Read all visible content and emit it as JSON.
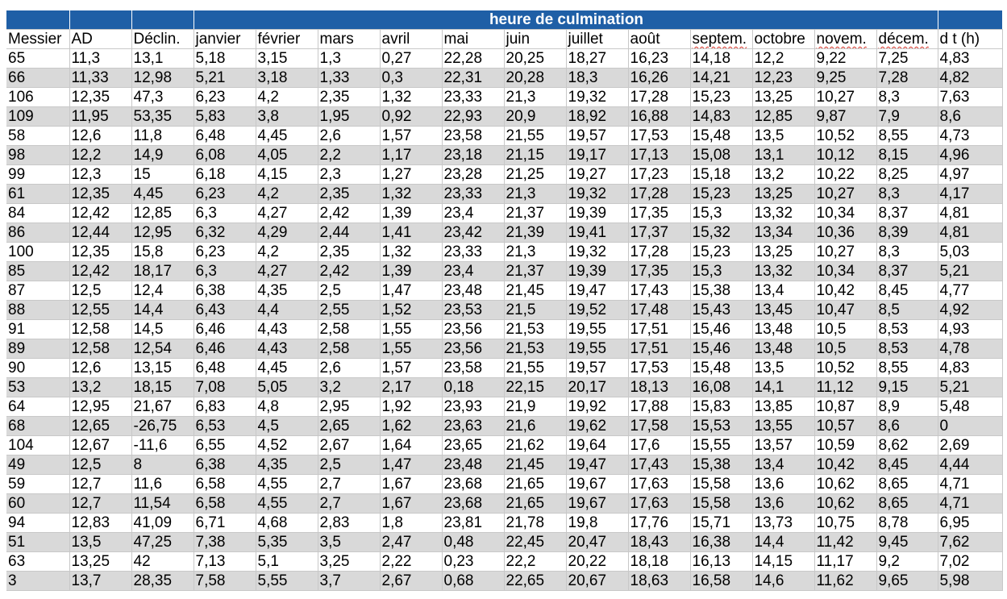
{
  "sheet": {
    "group_header": "heure de culmination",
    "columns": [
      "Messier",
      "AD",
      "Déclin.",
      "janvier",
      "février",
      "mars",
      "avril",
      "mai",
      "juin",
      "juillet",
      "août",
      "septem.",
      "octobre",
      "novem.",
      "décem.",
      "d t (h)"
    ],
    "spellcheck_columns": [
      11,
      13,
      14
    ],
    "rows": [
      [
        "65",
        "11,3",
        "13,1",
        "5,18",
        "3,15",
        "1,3",
        "0,27",
        "22,28",
        "20,25",
        "18,27",
        "16,23",
        "14,18",
        "12,2",
        "9,22",
        "7,25",
        "4,83"
      ],
      [
        "66",
        "11,33",
        "12,98",
        "5,21",
        "3,18",
        "1,33",
        "0,3",
        "22,31",
        "20,28",
        "18,3",
        "16,26",
        "14,21",
        "12,23",
        "9,25",
        "7,28",
        "4,82"
      ],
      [
        "106",
        "12,35",
        "47,3",
        "6,23",
        "4,2",
        "2,35",
        "1,32",
        "23,33",
        "21,3",
        "19,32",
        "17,28",
        "15,23",
        "13,25",
        "10,27",
        "8,3",
        "7,63"
      ],
      [
        "109",
        "11,95",
        "53,35",
        "5,83",
        "3,8",
        "1,95",
        "0,92",
        "22,93",
        "20,9",
        "18,92",
        "16,88",
        "14,83",
        "12,85",
        "9,87",
        "7,9",
        "8,6"
      ],
      [
        "58",
        "12,6",
        "11,8",
        "6,48",
        "4,45",
        "2,6",
        "1,57",
        "23,58",
        "21,55",
        "19,57",
        "17,53",
        "15,48",
        "13,5",
        "10,52",
        "8,55",
        "4,73"
      ],
      [
        "98",
        "12,2",
        "14,9",
        "6,08",
        "4,05",
        "2,2",
        "1,17",
        "23,18",
        "21,15",
        "19,17",
        "17,13",
        "15,08",
        "13,1",
        "10,12",
        "8,15",
        "4,96"
      ],
      [
        "99",
        "12,3",
        "15",
        "6,18",
        "4,15",
        "2,3",
        "1,27",
        "23,28",
        "21,25",
        "19,27",
        "17,23",
        "15,18",
        "13,2",
        "10,22",
        "8,25",
        "4,97"
      ],
      [
        "61",
        "12,35",
        "4,45",
        "6,23",
        "4,2",
        "2,35",
        "1,32",
        "23,33",
        "21,3",
        "19,32",
        "17,28",
        "15,23",
        "13,25",
        "10,27",
        "8,3",
        "4,17"
      ],
      [
        "84",
        "12,42",
        "12,85",
        "6,3",
        "4,27",
        "2,42",
        "1,39",
        "23,4",
        "21,37",
        "19,39",
        "17,35",
        "15,3",
        "13,32",
        "10,34",
        "8,37",
        "4,81"
      ],
      [
        "86",
        "12,44",
        "12,95",
        "6,32",
        "4,29",
        "2,44",
        "1,41",
        "23,42",
        "21,39",
        "19,41",
        "17,37",
        "15,32",
        "13,34",
        "10,36",
        "8,39",
        "4,81"
      ],
      [
        "100",
        "12,35",
        "15,8",
        "6,23",
        "4,2",
        "2,35",
        "1,32",
        "23,33",
        "21,3",
        "19,32",
        "17,28",
        "15,23",
        "13,25",
        "10,27",
        "8,3",
        "5,03"
      ],
      [
        "85",
        "12,42",
        "18,17",
        "6,3",
        "4,27",
        "2,42",
        "1,39",
        "23,4",
        "21,37",
        "19,39",
        "17,35",
        "15,3",
        "13,32",
        "10,34",
        "8,37",
        "5,21"
      ],
      [
        "87",
        "12,5",
        "12,4",
        "6,38",
        "4,35",
        "2,5",
        "1,47",
        "23,48",
        "21,45",
        "19,47",
        "17,43",
        "15,38",
        "13,4",
        "10,42",
        "8,45",
        "4,77"
      ],
      [
        "88",
        "12,55",
        "14,4",
        "6,43",
        "4,4",
        "2,55",
        "1,52",
        "23,53",
        "21,5",
        "19,52",
        "17,48",
        "15,43",
        "13,45",
        "10,47",
        "8,5",
        "4,92"
      ],
      [
        "91",
        "12,58",
        "14,5",
        "6,46",
        "4,43",
        "2,58",
        "1,55",
        "23,56",
        "21,53",
        "19,55",
        "17,51",
        "15,46",
        "13,48",
        "10,5",
        "8,53",
        "4,93"
      ],
      [
        "89",
        "12,58",
        "12,54",
        "6,46",
        "4,43",
        "2,58",
        "1,55",
        "23,56",
        "21,53",
        "19,55",
        "17,51",
        "15,46",
        "13,48",
        "10,5",
        "8,53",
        "4,78"
      ],
      [
        "90",
        "12,6",
        "13,15",
        "6,48",
        "4,45",
        "2,6",
        "1,57",
        "23,58",
        "21,55",
        "19,57",
        "17,53",
        "15,48",
        "13,5",
        "10,52",
        "8,55",
        "4,83"
      ],
      [
        "53",
        "13,2",
        "18,15",
        "7,08",
        "5,05",
        "3,2",
        "2,17",
        "0,18",
        "22,15",
        "20,17",
        "18,13",
        "16,08",
        "14,1",
        "11,12",
        "9,15",
        "5,21"
      ],
      [
        "64",
        "12,95",
        "21,67",
        "6,83",
        "4,8",
        "2,95",
        "1,92",
        "23,93",
        "21,9",
        "19,92",
        "17,88",
        "15,83",
        "13,85",
        "10,87",
        "8,9",
        "5,48"
      ],
      [
        "68",
        "12,65",
        "-26,75",
        "6,53",
        "4,5",
        "2,65",
        "1,62",
        "23,63",
        "21,6",
        "19,62",
        "17,58",
        "15,53",
        "13,55",
        "10,57",
        "8,6",
        "0"
      ],
      [
        "104",
        "12,67",
        "-11,6",
        "6,55",
        "4,52",
        "2,67",
        "1,64",
        "23,65",
        "21,62",
        "19,64",
        "17,6",
        "15,55",
        "13,57",
        "10,59",
        "8,62",
        "2,69"
      ],
      [
        "49",
        "12,5",
        "8",
        "6,38",
        "4,35",
        "2,5",
        "1,47",
        "23,48",
        "21,45",
        "19,47",
        "17,43",
        "15,38",
        "13,4",
        "10,42",
        "8,45",
        "4,44"
      ],
      [
        "59",
        "12,7",
        "11,6",
        "6,58",
        "4,55",
        "2,7",
        "1,67",
        "23,68",
        "21,65",
        "19,67",
        "17,63",
        "15,58",
        "13,6",
        "10,62",
        "8,65",
        "4,71"
      ],
      [
        "60",
        "12,7",
        "11,54",
        "6,58",
        "4,55",
        "2,7",
        "1,67",
        "23,68",
        "21,65",
        "19,67",
        "17,63",
        "15,58",
        "13,6",
        "10,62",
        "8,65",
        "4,71"
      ],
      [
        "94",
        "12,83",
        "41,09",
        "6,71",
        "4,68",
        "2,83",
        "1,8",
        "23,81",
        "21,78",
        "19,8",
        "17,76",
        "15,71",
        "13,73",
        "10,75",
        "8,78",
        "6,95"
      ],
      [
        "51",
        "13,5",
        "47,25",
        "7,38",
        "5,35",
        "3,5",
        "2,47",
        "0,48",
        "22,45",
        "20,47",
        "18,43",
        "16,38",
        "14,4",
        "11,42",
        "9,45",
        "7,62"
      ],
      [
        "63",
        "13,25",
        "42",
        "7,13",
        "5,1",
        "3,25",
        "2,22",
        "0,23",
        "22,2",
        "20,22",
        "18,18",
        "16,13",
        "14,15",
        "11,17",
        "9,2",
        "7,02"
      ],
      [
        "3",
        "13,7",
        "28,35",
        "7,58",
        "5,55",
        "3,7",
        "2,67",
        "0,68",
        "22,65",
        "20,67",
        "18,63",
        "16,58",
        "14,6",
        "11,62",
        "9,65",
        "5,98"
      ]
    ]
  }
}
